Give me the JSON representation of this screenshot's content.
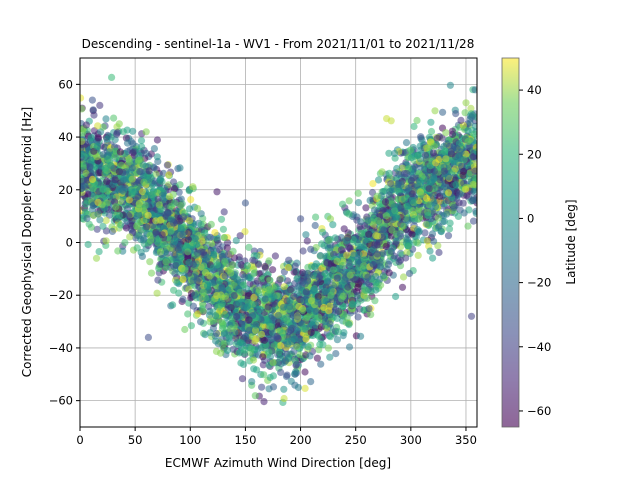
{
  "chart_data": {
    "type": "scatter",
    "title": "Descending - sentinel-1a - WV1 - From 2021/11/01 to 2021/11/28",
    "xlabel": "ECMWF Azimuth Wind Direction [deg]",
    "ylabel": "Corrected Geophysical Doppler Centroid [Hz]",
    "xlim": [
      0,
      360
    ],
    "ylim": [
      -70,
      70
    ],
    "xticks": [
      "0",
      "50",
      "100",
      "150",
      "200",
      "250",
      "300",
      "350"
    ],
    "yticks": [
      "60",
      "40",
      "20",
      "0",
      "−20",
      "−40",
      "−60"
    ],
    "grid": true,
    "colormap": "viridis",
    "point_alpha": 0.55,
    "colorbar": {
      "label": "Latitude [deg]",
      "range": [
        -65,
        50
      ],
      "ticks": [
        "40",
        "20",
        "0",
        "−20",
        "−40",
        "−60"
      ]
    },
    "trend": {
      "description": "Doppler follows a cosine-like dependence on wind direction, minimum near 180 deg",
      "approx_center": [
        {
          "x": 0,
          "y": 28
        },
        {
          "x": 50,
          "y": 20
        },
        {
          "x": 100,
          "y": -5
        },
        {
          "x": 150,
          "y": -27
        },
        {
          "x": 190,
          "y": -30
        },
        {
          "x": 250,
          "y": -10
        },
        {
          "x": 300,
          "y": 18
        },
        {
          "x": 355,
          "y": 32
        }
      ],
      "spread_hz": 10,
      "n_points": 5000
    },
    "series": [
      {
        "values": [
          {
            "x": 18,
            "y": 52,
            "lat": -45
          },
          {
            "x": 130,
            "y": 5,
            "lat": 20
          },
          {
            "x": 62,
            "y": -36,
            "lat": -35
          },
          {
            "x": 355,
            "y": -28,
            "lat": -40
          },
          {
            "x": 278,
            "y": 47,
            "lat": 45
          },
          {
            "x": 350,
            "y": 53,
            "lat": 40
          },
          {
            "x": 198,
            "y": -55,
            "lat": -10
          },
          {
            "x": 95,
            "y": -33,
            "lat": 35
          },
          {
            "x": 15,
            "y": -6,
            "lat": 40
          },
          {
            "x": 60,
            "y": 42,
            "lat": 38
          },
          {
            "x": 150,
            "y": 15,
            "lat": -30
          },
          {
            "x": 200,
            "y": 9,
            "lat": -35
          }
        ]
      }
    ]
  }
}
